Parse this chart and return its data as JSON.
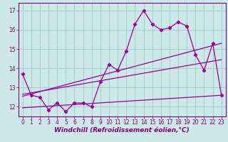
{
  "xlabel": "Windchill (Refroidissement éolien,°C)",
  "bg_color": "#cce8e8",
  "line_color": "#990099",
  "grid_color": "#aacccc",
  "xlim": [
    -0.5,
    23.5
  ],
  "ylim": [
    11.5,
    17.4
  ],
  "xticks": [
    0,
    1,
    2,
    3,
    4,
    5,
    6,
    7,
    8,
    9,
    10,
    11,
    12,
    13,
    14,
    15,
    16,
    17,
    18,
    19,
    20,
    21,
    22,
    23
  ],
  "yticks": [
    12,
    13,
    14,
    15,
    16,
    17
  ],
  "main_line_x": [
    0,
    1,
    2,
    3,
    4,
    5,
    6,
    7,
    8,
    9,
    10,
    11,
    12,
    13,
    14,
    15,
    16,
    17,
    18,
    19,
    20,
    21,
    22,
    23
  ],
  "main_line_y": [
    13.7,
    12.6,
    12.5,
    11.85,
    12.2,
    11.75,
    12.2,
    12.2,
    12.0,
    13.3,
    14.2,
    13.9,
    14.9,
    16.3,
    17.0,
    16.3,
    16.0,
    16.1,
    16.4,
    16.2,
    14.7,
    13.9,
    15.3,
    12.6
  ],
  "trend1_x": [
    0,
    23
  ],
  "trend1_y": [
    12.55,
    15.3
  ],
  "trend2_x": [
    0,
    23
  ],
  "trend2_y": [
    12.65,
    14.45
  ],
  "trend3_x": [
    0,
    23
  ],
  "trend3_y": [
    11.95,
    12.6
  ],
  "font_color": "#800080",
  "tick_fontsize": 5.5,
  "label_fontsize": 6.5,
  "spine_color": "#800080"
}
